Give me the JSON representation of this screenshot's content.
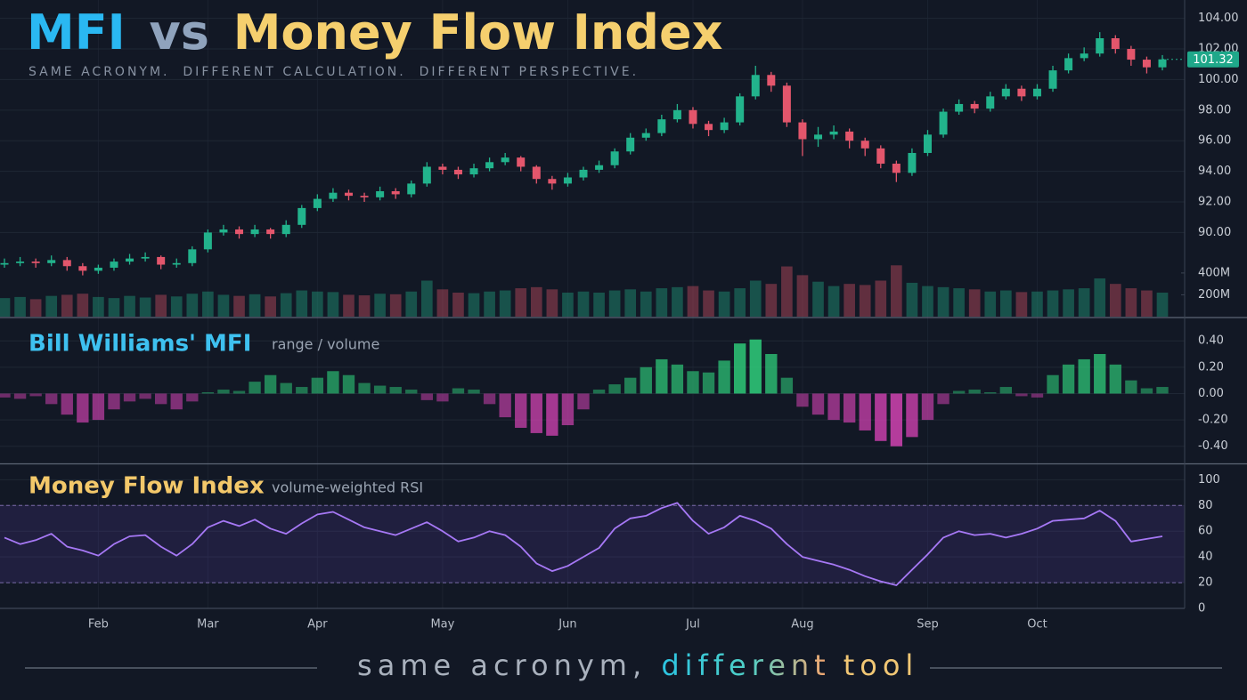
{
  "header": {
    "title_parts": [
      {
        "text": "MFI",
        "color": "#2ab8f2"
      },
      {
        "text": "vs",
        "color": "#8fa3bd"
      },
      {
        "text": "Money Flow Index",
        "color": "#f5cf6e"
      }
    ],
    "subtitle": "SAME ACRONYM.  DIFFERENT CALCULATION.  DIFFERENT PERSPECTIVE."
  },
  "chart_data": [
    {
      "type": "candlestick",
      "categories": [
        null,
        null,
        null,
        null,
        null,
        null,
        "Feb",
        null,
        null,
        null,
        null,
        null,
        null,
        "Mar",
        null,
        null,
        null,
        null,
        null,
        null,
        "Apr",
        null,
        null,
        null,
        null,
        null,
        null,
        null,
        "May",
        null,
        null,
        null,
        null,
        null,
        null,
        null,
        "Jun",
        null,
        null,
        null,
        null,
        null,
        null,
        null,
        "Jul",
        null,
        null,
        null,
        null,
        null,
        null,
        "Aug",
        null,
        null,
        null,
        null,
        null,
        null,
        null,
        "Sep",
        null,
        null,
        null,
        null,
        null,
        null,
        "Oct",
        null,
        null,
        null,
        null,
        null,
        null,
        null,
        null
      ],
      "open": [
        87.9,
        88.0,
        88.1,
        88.0,
        88.2,
        87.8,
        87.5,
        87.7,
        88.1,
        88.3,
        88.4,
        87.9,
        88.0,
        88.9,
        90.0,
        90.2,
        89.9,
        90.2,
        89.9,
        90.5,
        91.6,
        92.2,
        92.6,
        92.4,
        92.3,
        92.7,
        92.5,
        93.2,
        94.3,
        94.1,
        93.8,
        94.2,
        94.6,
        94.9,
        94.3,
        93.5,
        93.2,
        93.6,
        94.1,
        94.4,
        95.3,
        96.2,
        96.5,
        97.4,
        98.0,
        97.1,
        96.7,
        97.2,
        98.9,
        100.3,
        99.6,
        97.2,
        96.1,
        96.4,
        96.6,
        96.0,
        95.5,
        94.5,
        93.9,
        95.2,
        96.4,
        97.9,
        98.4,
        98.1,
        98.9,
        99.4,
        98.9,
        99.4,
        100.6,
        101.4,
        101.7,
        102.7,
        102.0,
        101.3,
        100.8
      ],
      "high": [
        88.3,
        88.4,
        88.3,
        88.5,
        88.4,
        88.0,
        87.9,
        88.3,
        88.6,
        88.7,
        88.5,
        88.3,
        89.1,
        90.2,
        90.5,
        90.4,
        90.5,
        90.3,
        90.8,
        91.8,
        92.5,
        92.9,
        92.8,
        92.6,
        93.0,
        92.9,
        93.4,
        94.6,
        94.5,
        94.3,
        94.5,
        94.9,
        95.2,
        95.0,
        94.4,
        93.7,
        93.9,
        94.3,
        94.7,
        95.5,
        96.5,
        96.8,
        97.7,
        98.4,
        98.2,
        97.3,
        97.5,
        99.1,
        100.9,
        100.5,
        99.8,
        97.4,
        96.9,
        97.0,
        96.8,
        96.2,
        95.7,
        94.7,
        95.5,
        96.7,
        98.1,
        98.7,
        98.6,
        99.2,
        99.7,
        99.6,
        99.7,
        100.9,
        101.7,
        102.1,
        103.1,
        102.9,
        102.2,
        101.5,
        101.6
      ],
      "low": [
        87.7,
        87.8,
        87.7,
        87.8,
        87.5,
        87.2,
        87.3,
        87.5,
        87.9,
        88.1,
        87.6,
        87.7,
        87.8,
        88.7,
        89.8,
        89.6,
        89.7,
        89.6,
        89.7,
        90.3,
        91.4,
        92.0,
        92.1,
        92.0,
        92.1,
        92.2,
        92.3,
        93.0,
        93.8,
        93.5,
        93.6,
        94.0,
        94.4,
        94.0,
        93.2,
        92.8,
        93.0,
        93.4,
        93.9,
        94.2,
        95.1,
        96.0,
        96.3,
        97.2,
        96.8,
        96.3,
        96.5,
        97.0,
        98.7,
        99.2,
        96.9,
        95.0,
        95.6,
        96.1,
        95.5,
        95.0,
        94.2,
        93.3,
        93.7,
        95.0,
        96.2,
        97.7,
        97.8,
        97.9,
        98.7,
        98.6,
        98.7,
        99.2,
        100.4,
        101.2,
        101.5,
        101.7,
        100.9,
        100.4,
        100.6
      ],
      "close": [
        88.0,
        88.1,
        88.0,
        88.2,
        87.8,
        87.5,
        87.7,
        88.1,
        88.3,
        88.4,
        87.9,
        88.0,
        88.9,
        90.0,
        90.2,
        89.9,
        90.2,
        89.9,
        90.5,
        91.6,
        92.2,
        92.6,
        92.4,
        92.3,
        92.7,
        92.5,
        93.2,
        94.3,
        94.1,
        93.8,
        94.2,
        94.6,
        94.9,
        94.3,
        93.5,
        93.2,
        93.6,
        94.1,
        94.4,
        95.3,
        96.2,
        96.5,
        97.4,
        98.0,
        97.1,
        96.7,
        97.2,
        98.9,
        100.3,
        99.6,
        97.2,
        96.1,
        96.4,
        96.6,
        96.0,
        95.5,
        94.5,
        93.9,
        95.2,
        96.4,
        97.9,
        98.4,
        98.1,
        98.9,
        99.4,
        98.9,
        99.4,
        100.6,
        101.4,
        101.7,
        102.7,
        102.0,
        101.3,
        100.8,
        101.32
      ],
      "up_color": "#22b38c",
      "down_color": "#e3566c",
      "ylim": [
        84.5,
        105.2
      ],
      "yticks": [
        {
          "value": 90,
          "label": "90.00"
        },
        {
          "value": 92,
          "label": "92.00"
        },
        {
          "value": 94,
          "label": "94.00"
        },
        {
          "value": 96,
          "label": "96.00"
        },
        {
          "value": 98,
          "label": "98.00"
        },
        {
          "value": 100,
          "label": "100.00"
        },
        {
          "value": 102,
          "label": "102.00"
        },
        {
          "value": 104,
          "label": "104.00"
        }
      ],
      "last_price": 101.32,
      "grid": true,
      "volume": {
        "values": [
          170,
          180,
          160,
          190,
          200,
          210,
          180,
          170,
          190,
          175,
          200,
          185,
          210,
          230,
          200,
          190,
          205,
          185,
          215,
          240,
          230,
          225,
          200,
          195,
          210,
          205,
          230,
          330,
          250,
          220,
          215,
          230,
          240,
          260,
          270,
          250,
          220,
          230,
          220,
          240,
          250,
          230,
          260,
          270,
          280,
          240,
          230,
          260,
          330,
          300,
          460,
          380,
          320,
          280,
          300,
          290,
          330,
          470,
          310,
          280,
          270,
          260,
          250,
          230,
          240,
          225,
          230,
          240,
          250,
          260,
          350,
          300,
          260,
          240,
          220
        ],
        "ylim": [
          0,
          2900
        ],
        "yticks": [
          {
            "value": 200,
            "label": "200M"
          },
          {
            "value": 400,
            "label": "400M"
          }
        ]
      }
    },
    {
      "type": "bar",
      "title": "Bill Williams' MFI",
      "subtitle": "range / volume",
      "values": [
        -0.03,
        -0.04,
        -0.02,
        -0.08,
        -0.16,
        -0.22,
        -0.2,
        -0.12,
        -0.06,
        -0.04,
        -0.08,
        -0.12,
        -0.06,
        0.01,
        0.03,
        0.02,
        0.09,
        0.14,
        0.08,
        0.05,
        0.12,
        0.17,
        0.14,
        0.08,
        0.06,
        0.05,
        0.03,
        -0.05,
        -0.06,
        0.04,
        0.03,
        -0.08,
        -0.18,
        -0.26,
        -0.3,
        -0.32,
        -0.24,
        -0.12,
        0.03,
        0.07,
        0.12,
        0.2,
        0.26,
        0.22,
        0.17,
        0.16,
        0.25,
        0.38,
        0.41,
        0.3,
        0.12,
        -0.1,
        -0.16,
        -0.2,
        -0.22,
        -0.28,
        -0.36,
        -0.4,
        -0.33,
        -0.2,
        -0.08,
        0.02,
        0.03,
        0.01,
        0.05,
        -0.02,
        -0.03,
        0.14,
        0.22,
        0.26,
        0.3,
        0.22,
        0.1,
        0.04,
        0.05
      ],
      "ylim": [
        -0.53,
        0.57
      ],
      "yticks": [
        {
          "value": 0.4,
          "label": "0.40"
        },
        {
          "value": 0.2,
          "label": "0.20"
        },
        {
          "value": 0,
          "label": "0.00"
        },
        {
          "value": -0.2,
          "label": "-0.20"
        },
        {
          "value": -0.4,
          "label": "-0.40"
        }
      ],
      "positive_color": "#2fd07c",
      "negative_color": "#d443b4",
      "grid": true
    },
    {
      "type": "line",
      "title": "Money Flow Index",
      "subtitle": "volume-weighted RSI",
      "values": [
        55,
        50,
        53,
        58,
        48,
        45,
        41,
        50,
        56,
        57,
        48,
        41,
        50,
        63,
        68,
        64,
        69,
        62,
        58,
        66,
        73,
        75,
        69,
        63,
        60,
        57,
        62,
        67,
        60,
        52,
        55,
        60,
        57,
        48,
        35,
        29,
        33,
        40,
        47,
        62,
        70,
        72,
        78,
        82,
        68,
        58,
        63,
        72,
        68,
        62,
        50,
        40,
        37,
        34,
        30,
        25,
        21,
        18,
        30,
        42,
        55,
        60,
        57,
        58,
        55,
        58,
        62,
        68,
        69,
        70,
        76,
        68,
        52,
        54,
        56
      ],
      "color": "#a678f5",
      "ylim": [
        0,
        112
      ],
      "yticks": [
        0,
        20,
        40,
        60,
        80,
        100
      ],
      "bands": [
        20,
        80
      ],
      "grid": true
    }
  ],
  "footer": {
    "parts": [
      {
        "text": "same acronym, ",
        "color": "#a9b1bd"
      },
      {
        "text": "different",
        "color": "url(#diffGrad)"
      },
      {
        "text": "tool",
        "color": "#f0c674"
      }
    ]
  }
}
